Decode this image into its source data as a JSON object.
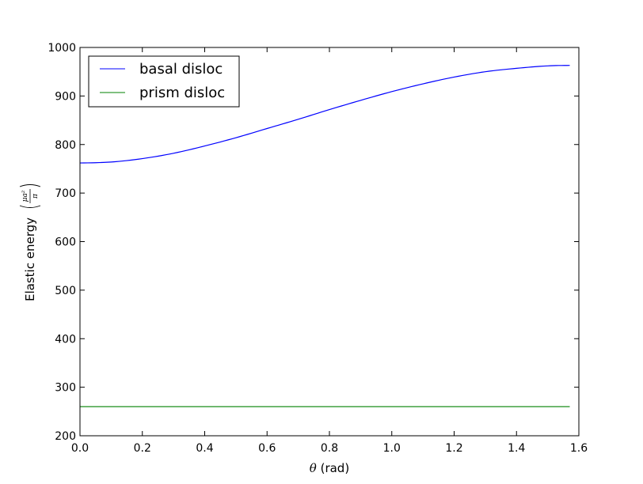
{
  "chart_data": {
    "type": "line",
    "xlabel": {
      "var": "θ",
      "text": " (rad)"
    },
    "ylabel": {
      "text": "Elastic energy",
      "numerator": "μa²",
      "denominator": "π"
    },
    "xlim": [
      0.0,
      1.6
    ],
    "ylim": [
      200,
      1000
    ],
    "xticks": [
      "0.0",
      "0.2",
      "0.4",
      "0.6",
      "0.8",
      "1.0",
      "1.2",
      "1.4",
      "1.6"
    ],
    "yticks": [
      "200",
      "300",
      "400",
      "500",
      "600",
      "700",
      "800",
      "900",
      "1000"
    ],
    "grid": false,
    "legend_position": "upper left",
    "series": [
      {
        "name": "basal disloc",
        "color": "#0000ff",
        "x": [
          0.0,
          0.1,
          0.2,
          0.3,
          0.4,
          0.5,
          0.6,
          0.7,
          0.8,
          0.9,
          1.0,
          1.1,
          1.2,
          1.3,
          1.4,
          1.5,
          1.5708
        ],
        "y": [
          762,
          764,
          771,
          782,
          797,
          814,
          833,
          852,
          872,
          891,
          909,
          925,
          939,
          950,
          957,
          962,
          963
        ]
      },
      {
        "name": "prism disloc",
        "color": "#008000",
        "x": [
          0.0,
          1.5708
        ],
        "y": [
          260,
          260
        ]
      }
    ]
  }
}
